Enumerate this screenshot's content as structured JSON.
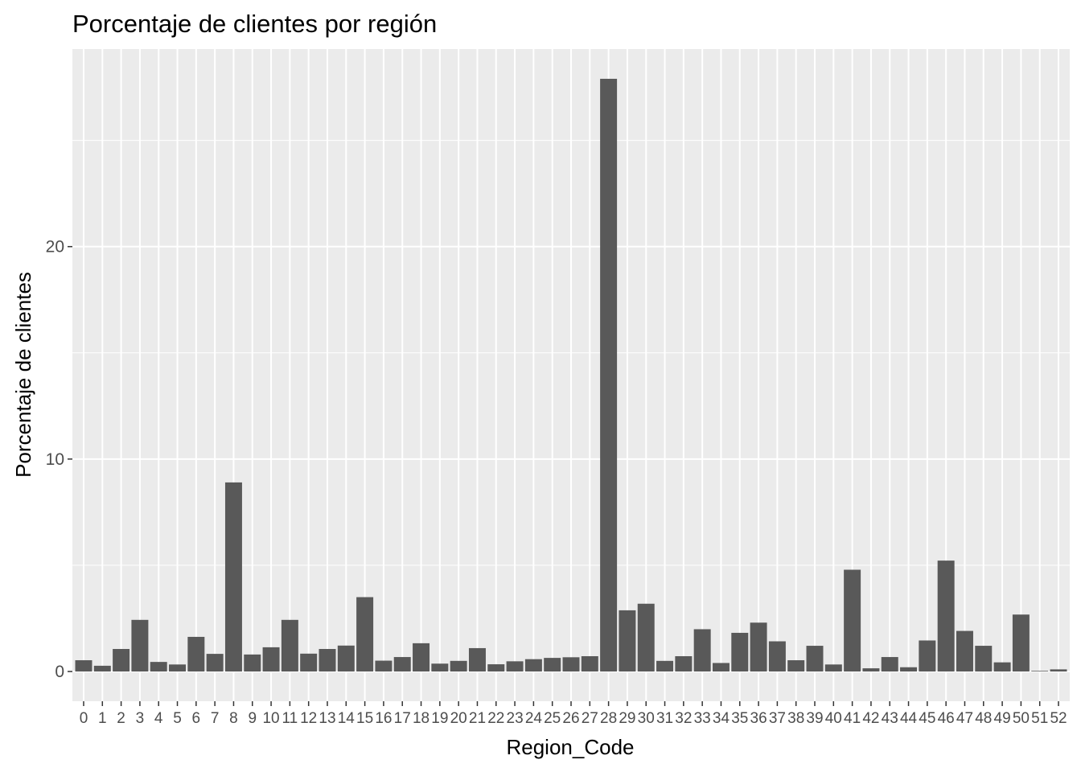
{
  "chart_data": {
    "type": "bar",
    "title": "Porcentaje de clientes por región",
    "xlabel": "Region_Code",
    "ylabel": "Porcentaje de clientes",
    "categories": [
      "0",
      "1",
      "2",
      "3",
      "4",
      "5",
      "6",
      "7",
      "8",
      "9",
      "10",
      "11",
      "12",
      "13",
      "14",
      "15",
      "16",
      "17",
      "18",
      "19",
      "20",
      "21",
      "22",
      "23",
      "24",
      "25",
      "26",
      "27",
      "28",
      "29",
      "30",
      "31",
      "32",
      "33",
      "34",
      "35",
      "36",
      "37",
      "38",
      "39",
      "40",
      "41",
      "42",
      "43",
      "44",
      "45",
      "46",
      "47",
      "48",
      "49",
      "50",
      "51",
      "52"
    ],
    "values": [
      0.53,
      0.27,
      1.06,
      2.43,
      0.45,
      0.33,
      1.63,
      0.83,
      8.9,
      0.8,
      1.14,
      2.43,
      0.84,
      1.06,
      1.22,
      3.5,
      0.51,
      0.68,
      1.33,
      0.37,
      0.5,
      1.1,
      0.34,
      0.48,
      0.58,
      0.64,
      0.67,
      0.72,
      27.9,
      2.88,
      3.19,
      0.5,
      0.72,
      1.99,
      0.4,
      1.82,
      2.3,
      1.42,
      0.53,
      1.21,
      0.33,
      4.79,
      0.15,
      0.68,
      0.2,
      1.46,
      5.22,
      1.91,
      1.21,
      0.43,
      2.68,
      0.03,
      0.1
    ],
    "yticks": [
      0,
      10,
      20
    ],
    "ylim": [
      -1.4,
      29.3
    ],
    "grid": true,
    "colors": {
      "bar": "#595959",
      "panel": "#ebebeb",
      "grid": "#ffffff"
    }
  }
}
